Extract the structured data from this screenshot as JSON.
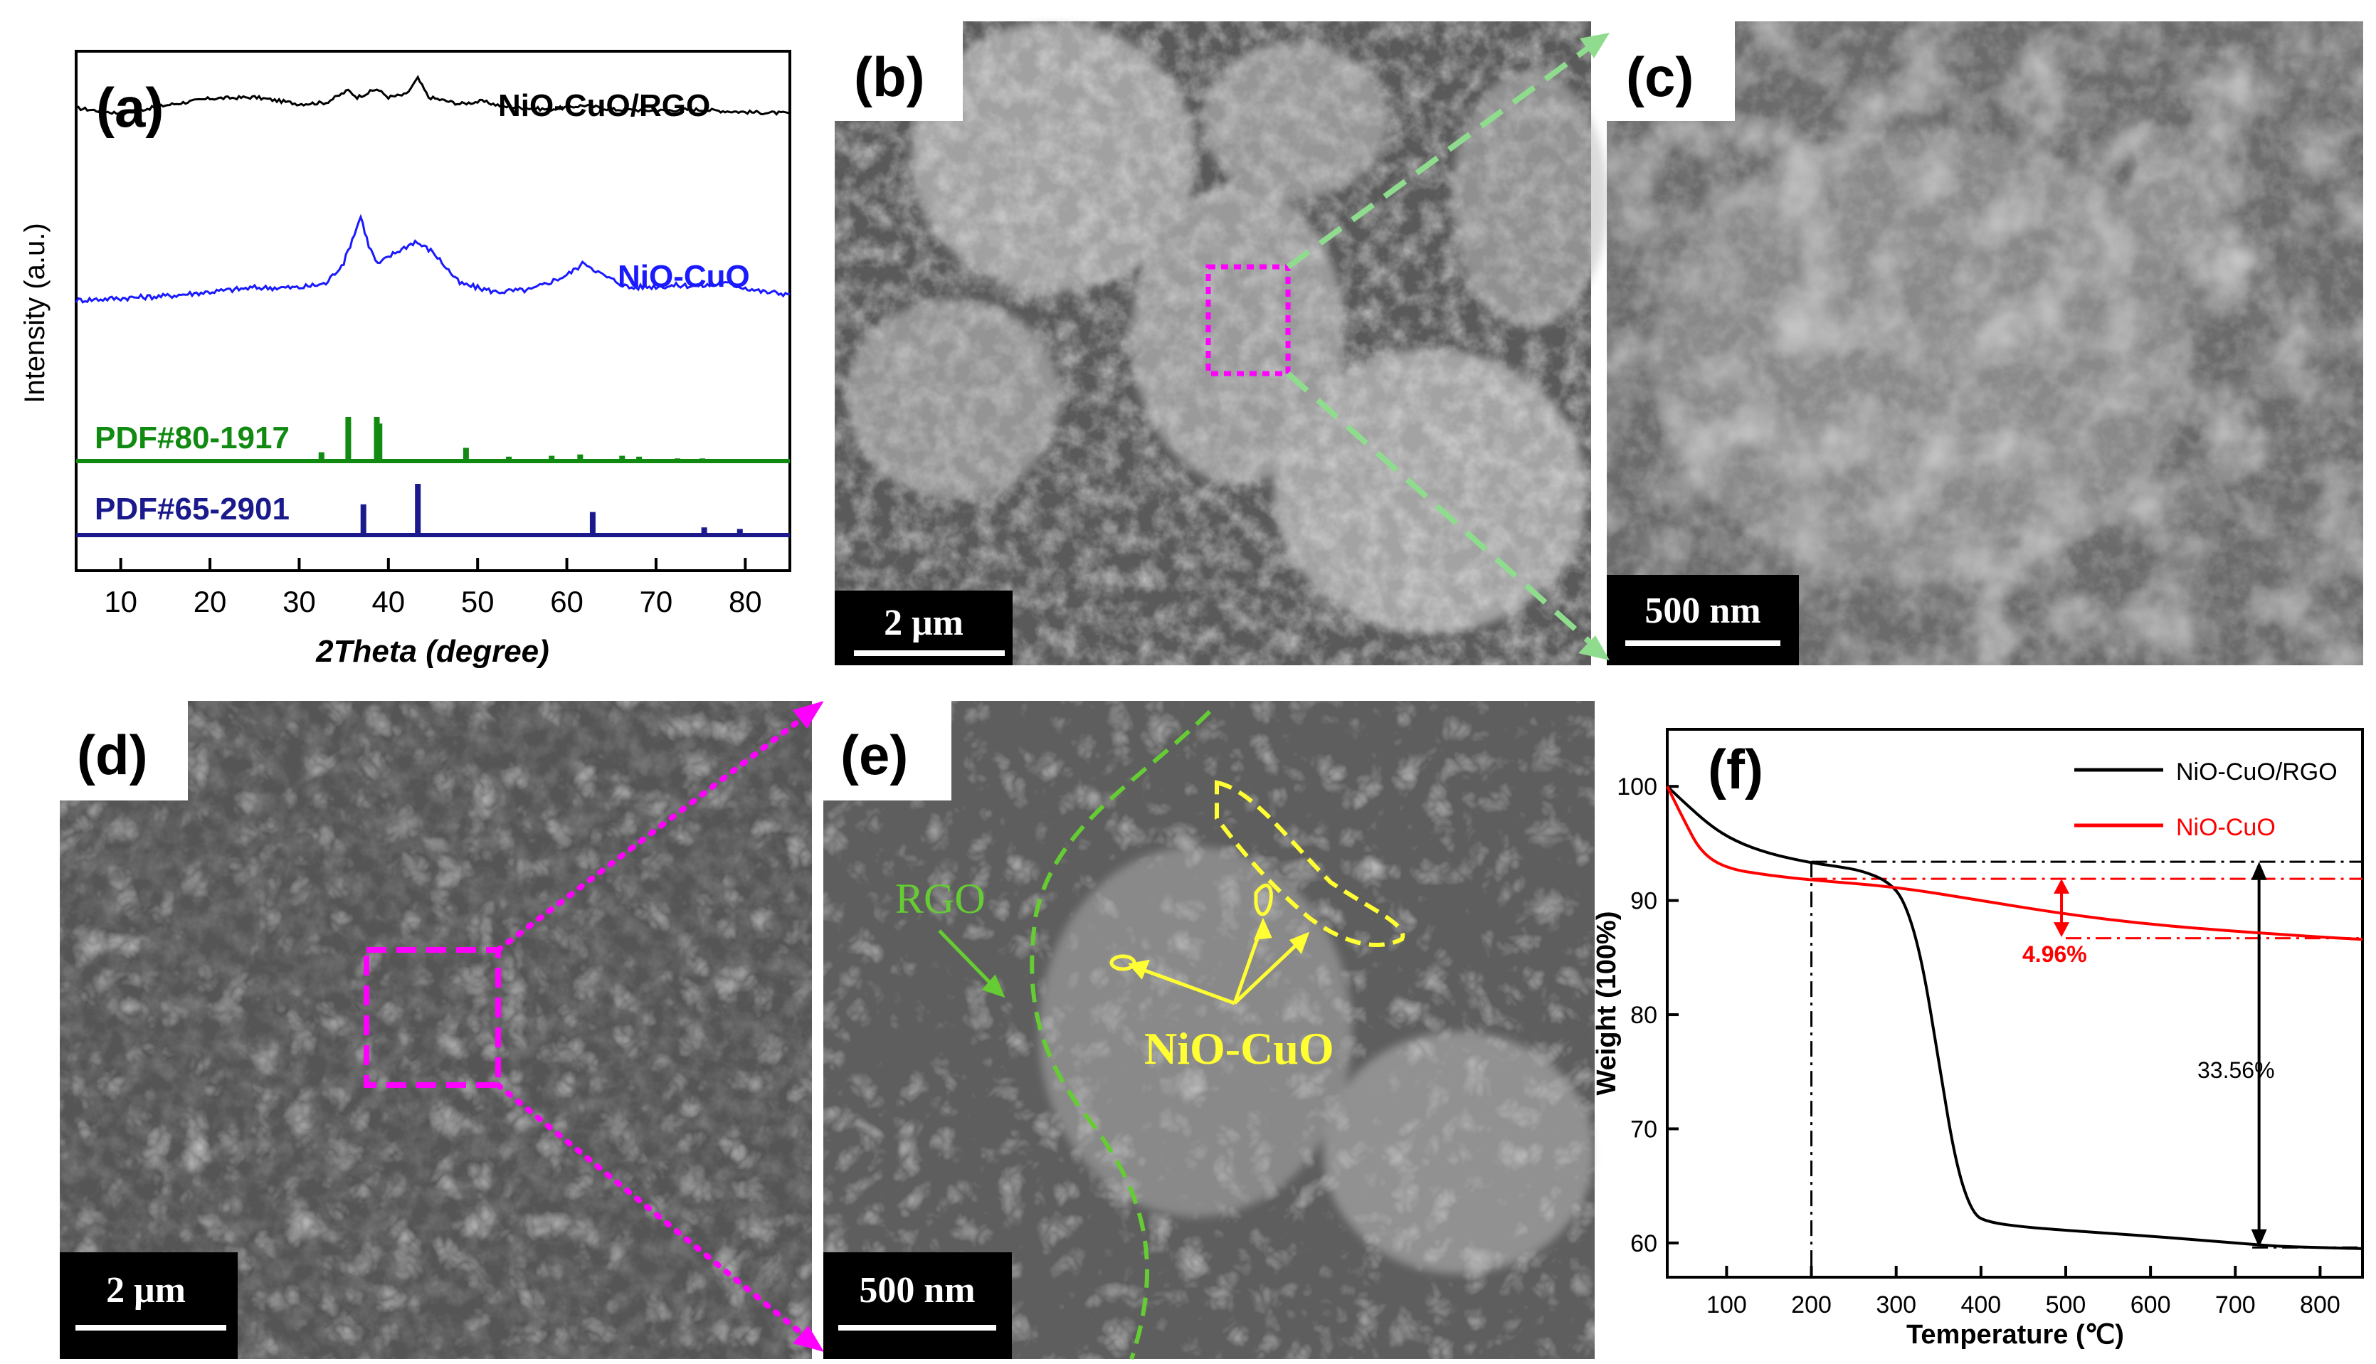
{
  "panel_labels": {
    "a": "(a)",
    "b": "(b)",
    "c": "(c)",
    "d": "(d)",
    "e": "(e)",
    "f": "(f)"
  },
  "scale_bars": {
    "b": "2 μm",
    "c": "500 nm",
    "d": "2 μm",
    "e": "500 nm"
  },
  "annotations_e": {
    "rgo": "RGO",
    "nio_cuo": "NiO-CuO"
  },
  "colors": {
    "black_curve": "#000000",
    "blue_curve": "#1a1aff",
    "green_ref": "#118a11",
    "navy_ref": "#1a1a8c",
    "magenta_box": "#ff00ff",
    "green_arrow": "#8fdc8f",
    "yellow_outline": "#ffff33",
    "green_outline": "#66cc33",
    "red_curve": "#ff0000"
  },
  "chart_data": [
    {
      "panel": "a",
      "type": "line",
      "xlabel": "2Theta (degree)",
      "ylabel": "Intensity (a.u.)",
      "xlim": [
        5,
        85
      ],
      "xticks": [
        10,
        20,
        30,
        40,
        50,
        60,
        70,
        80
      ],
      "series": [
        {
          "name": "NiO-CuO/RGO",
          "color": "#000000",
          "points": [
            [
              5,
              0.78
            ],
            [
              10,
              0.74
            ],
            [
              15,
              0.8
            ],
            [
              20,
              0.85
            ],
            [
              25,
              0.86
            ],
            [
              30,
              0.81
            ],
            [
              33,
              0.82
            ],
            [
              35.5,
              0.91
            ],
            [
              36.5,
              0.86
            ],
            [
              38.7,
              0.92
            ],
            [
              40,
              0.86
            ],
            [
              42,
              0.88
            ],
            [
              43.3,
              1.0
            ],
            [
              44.5,
              0.86
            ],
            [
              48,
              0.81
            ],
            [
              50.5,
              0.83
            ],
            [
              53,
              0.79
            ],
            [
              58,
              0.77
            ],
            [
              62,
              0.8
            ],
            [
              65,
              0.77
            ],
            [
              70,
              0.76
            ],
            [
              74,
              0.77
            ],
            [
              80,
              0.75
            ],
            [
              85,
              0.74
            ]
          ]
        },
        {
          "name": "NiO-CuO",
          "color": "#1a1aff",
          "points": [
            [
              5,
              0.4
            ],
            [
              10,
              0.41
            ],
            [
              15,
              0.42
            ],
            [
              20,
              0.44
            ],
            [
              25,
              0.46
            ],
            [
              30,
              0.46
            ],
            [
              33,
              0.48
            ],
            [
              35,
              0.58
            ],
            [
              36.9,
              0.8
            ],
            [
              37.8,
              0.66
            ],
            [
              38.8,
              0.57
            ],
            [
              40.5,
              0.62
            ],
            [
              43,
              0.68
            ],
            [
              45,
              0.63
            ],
            [
              48,
              0.48
            ],
            [
              52,
              0.44
            ],
            [
              56,
              0.45
            ],
            [
              60,
              0.52
            ],
            [
              62,
              0.58
            ],
            [
              64,
              0.52
            ],
            [
              67,
              0.46
            ],
            [
              72,
              0.47
            ],
            [
              75.5,
              0.47
            ],
            [
              78,
              0.48
            ],
            [
              82,
              0.44
            ],
            [
              85,
              0.43
            ]
          ]
        }
      ],
      "references": [
        {
          "name": "PDF#80-1917",
          "color": "#118a11",
          "peaks": [
            [
              32.5,
              0.2
            ],
            [
              35.5,
              1.0
            ],
            [
              38.7,
              1.0
            ],
            [
              39.0,
              0.85
            ],
            [
              48.7,
              0.3
            ],
            [
              53.5,
              0.1
            ],
            [
              58.3,
              0.12
            ],
            [
              61.5,
              0.15
            ],
            [
              66.2,
              0.12
            ],
            [
              68.1,
              0.1
            ],
            [
              72.4,
              0.06
            ],
            [
              75.2,
              0.06
            ]
          ]
        },
        {
          "name": "PDF#65-2901",
          "color": "#1a1a8c",
          "peaks": [
            [
              37.2,
              0.6
            ],
            [
              43.3,
              1.0
            ],
            [
              62.9,
              0.45
            ],
            [
              75.4,
              0.15
            ],
            [
              79.4,
              0.12
            ]
          ]
        }
      ]
    },
    {
      "panel": "f",
      "type": "line",
      "xlabel": "Temperature (℃)",
      "ylabel": "Weight  (100%)",
      "xlim": [
        30,
        850
      ],
      "ylim": [
        57,
        105
      ],
      "xticks": [
        100,
        200,
        300,
        400,
        500,
        600,
        700,
        800
      ],
      "yticks": [
        60,
        70,
        80,
        90,
        100
      ],
      "legend": "top-right",
      "series": [
        {
          "name": "NiO-CuO/RGO",
          "color": "#000000",
          "points": [
            [
              30,
              100
            ],
            [
              50,
              98.6
            ],
            [
              80,
              96.6
            ],
            [
              110,
              95.2
            ],
            [
              150,
              94.1
            ],
            [
              200,
              93.3
            ],
            [
              230,
              93.0
            ],
            [
              260,
              92.6
            ],
            [
              290,
              91.7
            ],
            [
              310,
              90
            ],
            [
              330,
              85
            ],
            [
              350,
              76
            ],
            [
              370,
              67
            ],
            [
              390,
              62.5
            ],
            [
              410,
              61.8
            ],
            [
              450,
              61.4
            ],
            [
              500,
              61.1
            ],
            [
              600,
              60.6
            ],
            [
              700,
              60.0
            ],
            [
              750,
              59.7
            ],
            [
              800,
              59.6
            ],
            [
              850,
              59.5
            ]
          ]
        },
        {
          "name": "NiO-CuO",
          "color": "#ff0000",
          "points": [
            [
              30,
              100
            ],
            [
              50,
              97
            ],
            [
              70,
              94.2
            ],
            [
              100,
              92.8
            ],
            [
              150,
              92.2
            ],
            [
              200,
              91.8
            ],
            [
              300,
              91.2
            ],
            [
              400,
              90
            ],
            [
              500,
              88.8
            ],
            [
              600,
              87.9
            ],
            [
              700,
              87.3
            ],
            [
              800,
              86.8
            ],
            [
              850,
              86.6
            ]
          ]
        }
      ],
      "annotations": [
        {
          "text": "4.96%",
          "color": "#ff0000"
        },
        {
          "text": "33.56%",
          "color": "#000000"
        }
      ]
    }
  ]
}
